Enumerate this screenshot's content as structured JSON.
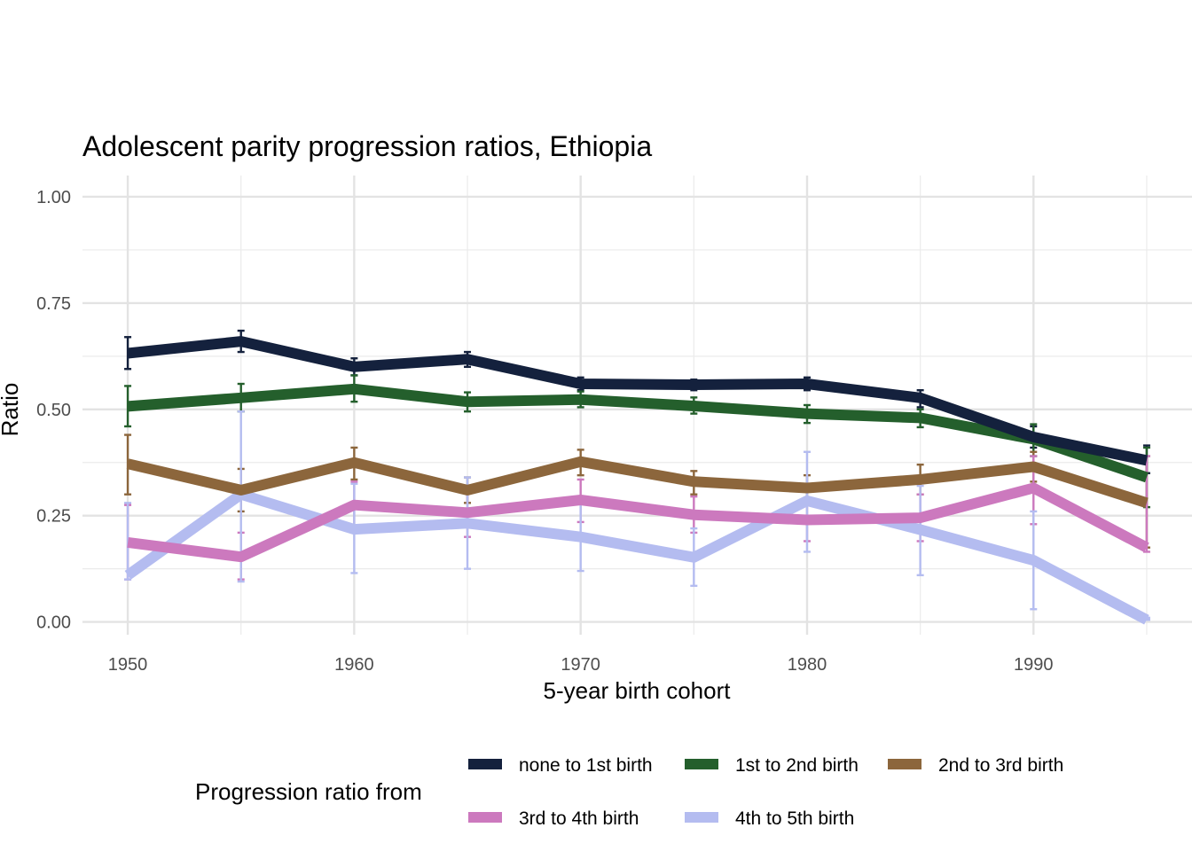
{
  "chart_data": {
    "type": "line",
    "title": "Adolescent parity progression ratios,  Ethiopia",
    "xlabel": "5-year birth cohort",
    "ylabel": "Ratio",
    "xlim": [
      1948,
      1997
    ],
    "ylim": [
      -0.03,
      1.05
    ],
    "x_ticks": [
      1950,
      1960,
      1970,
      1980,
      1990
    ],
    "x_tick_labels": [
      "1950",
      "1960",
      "1970",
      "1980",
      "1990"
    ],
    "y_ticks": [
      0.0,
      0.25,
      0.5,
      0.75,
      1.0
    ],
    "y_tick_labels": [
      "0.00",
      "0.25",
      "0.50",
      "0.75",
      "1.00"
    ],
    "x_minor_ticks": [
      1955,
      1965,
      1975,
      1985,
      1995
    ],
    "y_minor_ticks": [
      0.125,
      0.375,
      0.625,
      0.875
    ],
    "grid": true,
    "legend_title": "Progression ratio from",
    "legend_position": "bottom",
    "x": [
      1950,
      1955,
      1960,
      1965,
      1970,
      1975,
      1980,
      1985,
      1990,
      1995
    ],
    "series": [
      {
        "name": "none to 1st birth",
        "color": "#14213d",
        "values": [
          0.632,
          0.66,
          0.6,
          0.618,
          0.56,
          0.558,
          0.56,
          0.527,
          0.435,
          0.38
        ],
        "lower": [
          0.595,
          0.635,
          0.58,
          0.6,
          0.545,
          0.545,
          0.545,
          0.505,
          0.41,
          0.35
        ],
        "upper": [
          0.67,
          0.685,
          0.62,
          0.635,
          0.575,
          0.57,
          0.575,
          0.545,
          0.46,
          0.415
        ]
      },
      {
        "name": "1st to 2nd birth",
        "color": "#245f2c",
        "values": [
          0.507,
          0.527,
          0.548,
          0.518,
          0.523,
          0.508,
          0.49,
          0.48,
          0.43,
          0.34
        ],
        "lower": [
          0.46,
          0.495,
          0.518,
          0.495,
          0.505,
          0.49,
          0.468,
          0.458,
          0.39,
          0.27
        ],
        "upper": [
          0.555,
          0.56,
          0.58,
          0.54,
          0.542,
          0.528,
          0.51,
          0.5,
          0.465,
          0.41
        ]
      },
      {
        "name": "2nd to 3rd birth",
        "color": "#8c663c",
        "values": [
          0.372,
          0.31,
          0.375,
          0.31,
          0.377,
          0.33,
          0.315,
          0.335,
          0.365,
          0.28
        ],
        "lower": [
          0.3,
          0.26,
          0.335,
          0.28,
          0.345,
          0.3,
          0.285,
          0.3,
          0.33,
          0.175
        ],
        "upper": [
          0.44,
          0.36,
          0.41,
          0.34,
          0.405,
          0.355,
          0.345,
          0.37,
          0.4,
          0.39
        ]
      },
      {
        "name": "3rd to 4th birth",
        "color": "#cc79be",
        "values": [
          0.187,
          0.153,
          0.275,
          0.257,
          0.287,
          0.252,
          0.24,
          0.245,
          0.315,
          0.175
        ],
        "lower": [
          0.1,
          0.1,
          0.22,
          0.2,
          0.235,
          0.21,
          0.19,
          0.19,
          0.23,
          0.165
        ],
        "upper": [
          0.275,
          0.21,
          0.33,
          0.32,
          0.335,
          0.295,
          0.29,
          0.3,
          0.39,
          0.39
        ]
      },
      {
        "name": "4th to 5th birth",
        "color": "#b4bcf0",
        "values": [
          0.11,
          0.3,
          0.218,
          0.232,
          0.2,
          0.152,
          0.285,
          0.217,
          0.145,
          0.005
        ],
        "lower": [
          0.1,
          0.095,
          0.115,
          0.125,
          0.12,
          0.085,
          0.165,
          0.11,
          0.03,
          0.005
        ],
        "upper": [
          0.28,
          0.495,
          0.325,
          0.34,
          0.28,
          0.22,
          0.4,
          0.32,
          0.26,
          0.01
        ]
      }
    ],
    "legend_rows": [
      [
        "none to 1st birth",
        "1st to 2nd birth",
        "2nd to 3rd birth"
      ],
      [
        "3rd to 4th birth",
        "4th to 5th birth"
      ]
    ]
  }
}
